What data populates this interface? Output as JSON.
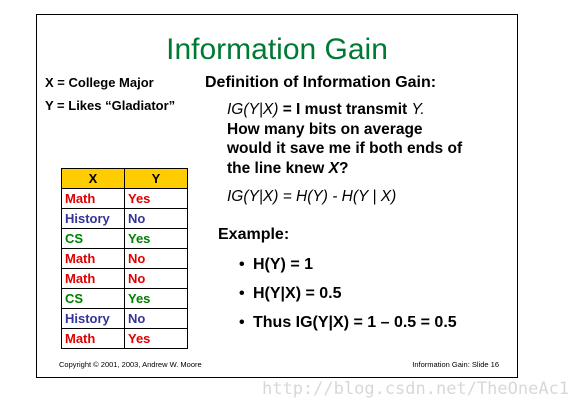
{
  "title": "Information Gain",
  "x_definition": "X = College Major",
  "y_definition": "Y = Likes “Gladiator”",
  "definition_heading": "Definition of Information Gain:",
  "definition": {
    "line1_ig": "IG(Y|X)",
    "line1_eq": " = I must transmit ",
    "line1_y": "Y.",
    "line2": "How many bits on average",
    "line3": "would it save me if both ends of",
    "line4_text": "the line knew ",
    "line4_x": "X",
    "line4_q": "?"
  },
  "formula": "IG(Y|X) = H(Y) - H(Y | X)",
  "example_heading": "Example:",
  "example_items": [
    "H(Y) = 1",
    "H(Y|X) = 0.5",
    "Thus IG(Y|X) = 1 – 0.5 = 0.5"
  ],
  "bullet": "•",
  "table": {
    "headers": [
      "X",
      "Y"
    ],
    "header_color": "#ffcc00",
    "rows": [
      {
        "x": "Math",
        "y": "Yes",
        "x_color": "#e00000",
        "y_color": "#e00000"
      },
      {
        "x": "History",
        "y": "No",
        "x_color": "#333399",
        "y_color": "#333399"
      },
      {
        "x": "CS",
        "y": "Yes",
        "x_color": "#008000",
        "y_color": "#008000"
      },
      {
        "x": "Math",
        "y": "No",
        "x_color": "#e00000",
        "y_color": "#e00000"
      },
      {
        "x": "Math",
        "y": "No",
        "x_color": "#e00000",
        "y_color": "#e00000"
      },
      {
        "x": "CS",
        "y": "Yes",
        "x_color": "#008000",
        "y_color": "#008000"
      },
      {
        "x": "History",
        "y": "No",
        "x_color": "#333399",
        "y_color": "#333399"
      },
      {
        "x": "Math",
        "y": "Yes",
        "x_color": "#e00000",
        "y_color": "#e00000"
      }
    ]
  },
  "footer_left": "Copyright © 2001, 2003, Andrew W. Moore",
  "footer_right": "Information Gain: Slide 16",
  "watermark": "http://blog.csdn.net/TheOneAc1",
  "title_color": "#007a33"
}
